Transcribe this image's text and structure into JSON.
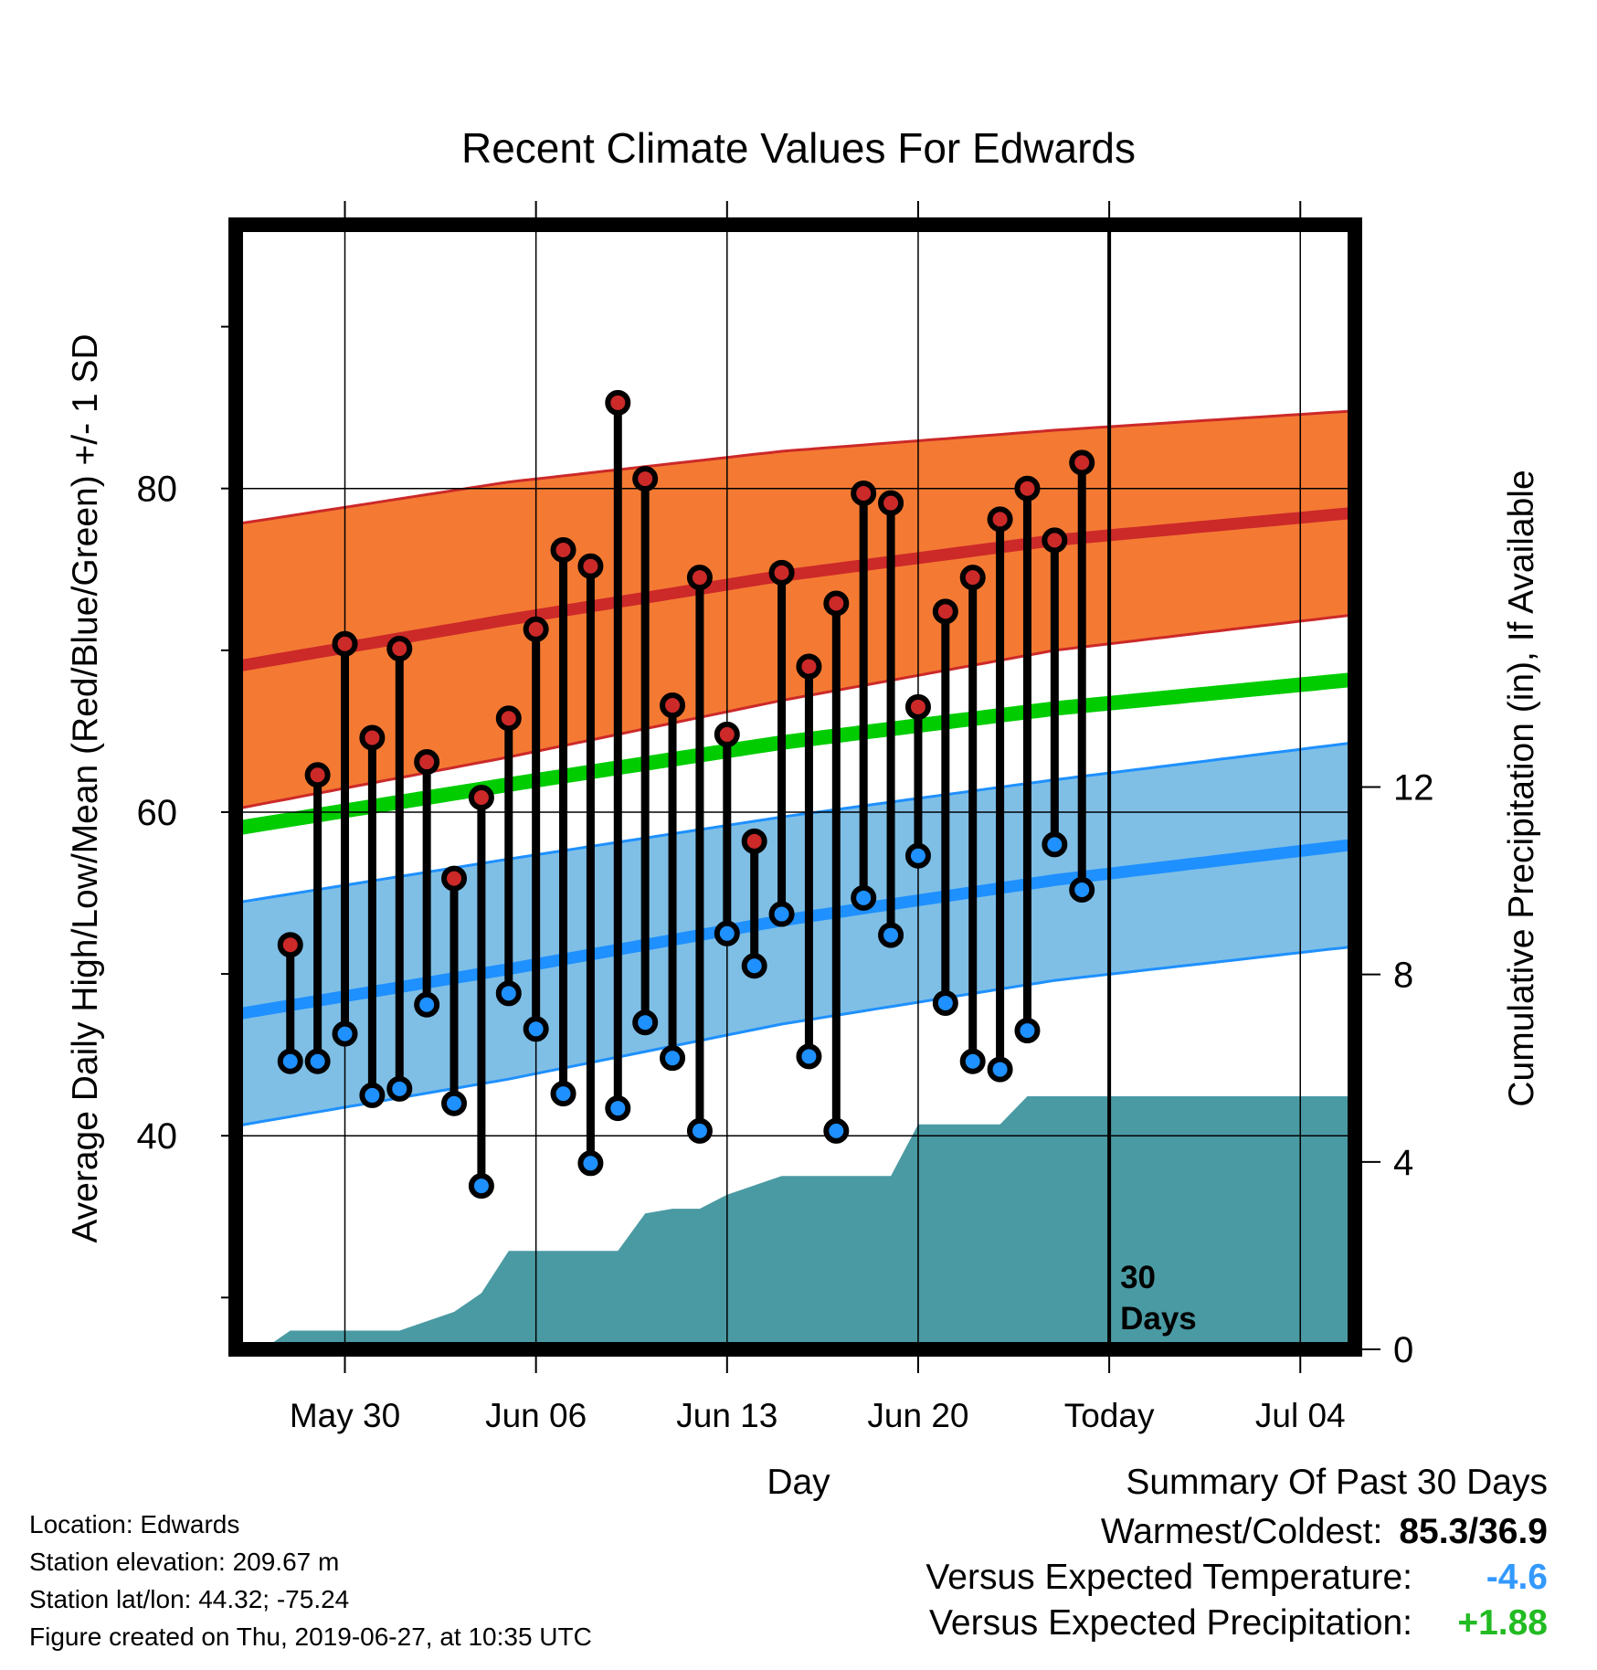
{
  "chart_data": {
    "type": "line",
    "title": "Recent Climate Values For Edwards",
    "xlabel": "Day",
    "ylabel": "Average Daily High/Low/Mean (Red/Blue/Green) +/- 1 SD",
    "ylabel_right": "Cumulative Precipitation (in), If Available",
    "x_ticks": [
      "May 30",
      "Jun 06",
      "Jun 13",
      "Jun 20",
      "Today",
      "Jul 04"
    ],
    "x_range": [
      "2019-05-26",
      "2019-07-06"
    ],
    "today": "2019-06-27",
    "today_label": [
      "30",
      "Days"
    ],
    "y_left": {
      "range": [
        26.8,
        96.3
      ],
      "ticks": [
        40,
        60,
        80
      ],
      "minor_ticks": [
        30,
        50,
        70,
        90
      ]
    },
    "y_right": {
      "range": [
        0,
        24
      ],
      "ticks": [
        0,
        4,
        8,
        12
      ]
    },
    "grid": true,
    "colors": {
      "high": "#cc2929",
      "high_band": "#f47a33",
      "low": "#1e90ff",
      "low_band": "#7fbfe6",
      "mean": "#00cc00",
      "precip": "#4a9aa3"
    },
    "normals": {
      "dates": [
        "2019-05-26",
        "2019-06-05",
        "2019-06-15",
        "2019-06-25",
        "2019-07-06"
      ],
      "high_mean": [
        69.0,
        71.9,
        74.6,
        76.8,
        78.5
      ],
      "high_sd": [
        8.8,
        8.5,
        7.7,
        6.8,
        6.3
      ],
      "low_mean": [
        47.5,
        50.3,
        53.3,
        55.8,
        58.0
      ],
      "low_sd": [
        6.9,
        6.8,
        6.4,
        6.2,
        6.3
      ],
      "avg_mean": [
        59.0,
        61.7,
        64.3,
        66.4,
        68.2
      ]
    },
    "series": [
      {
        "name": "High",
        "dates": [
          "2019-05-28",
          "2019-05-29",
          "2019-05-30",
          "2019-05-31",
          "2019-06-01",
          "2019-06-02",
          "2019-06-03",
          "2019-06-04",
          "2019-06-05",
          "2019-06-06",
          "2019-06-07",
          "2019-06-08",
          "2019-06-09",
          "2019-06-10",
          "2019-06-11",
          "2019-06-12",
          "2019-06-13",
          "2019-06-14",
          "2019-06-15",
          "2019-06-16",
          "2019-06-17",
          "2019-06-18",
          "2019-06-19",
          "2019-06-20",
          "2019-06-21",
          "2019-06-22",
          "2019-06-23",
          "2019-06-24",
          "2019-06-25",
          "2019-06-26"
        ],
        "values": [
          51.8,
          62.3,
          70.4,
          64.6,
          70.1,
          63.1,
          55.9,
          60.9,
          65.8,
          71.3,
          76.2,
          75.2,
          85.3,
          80.6,
          66.6,
          74.5,
          64.8,
          58.2,
          74.8,
          69.0,
          72.9,
          79.7,
          79.1,
          66.5,
          72.4,
          74.5,
          78.1,
          80.0,
          76.8,
          81.6
        ]
      },
      {
        "name": "Low",
        "dates": [
          "2019-05-28",
          "2019-05-29",
          "2019-05-30",
          "2019-05-31",
          "2019-06-01",
          "2019-06-02",
          "2019-06-03",
          "2019-06-04",
          "2019-06-05",
          "2019-06-06",
          "2019-06-07",
          "2019-06-08",
          "2019-06-09",
          "2019-06-10",
          "2019-06-11",
          "2019-06-12",
          "2019-06-13",
          "2019-06-14",
          "2019-06-15",
          "2019-06-16",
          "2019-06-17",
          "2019-06-18",
          "2019-06-19",
          "2019-06-20",
          "2019-06-21",
          "2019-06-22",
          "2019-06-23",
          "2019-06-24",
          "2019-06-25",
          "2019-06-26"
        ],
        "values": [
          44.6,
          44.6,
          46.3,
          42.5,
          42.9,
          48.1,
          42.0,
          36.9,
          48.8,
          46.6,
          42.6,
          38.3,
          41.7,
          47.0,
          44.8,
          40.3,
          52.5,
          50.5,
          53.7,
          44.9,
          40.3,
          54.7,
          52.4,
          57.3,
          48.2,
          44.6,
          44.1,
          46.5,
          58.0,
          55.2
        ]
      },
      {
        "name": "Cumulative Precipitation",
        "dates": [
          "2019-05-27",
          "2019-05-28",
          "2019-05-29",
          "2019-05-30",
          "2019-05-31",
          "2019-06-01",
          "2019-06-02",
          "2019-06-03",
          "2019-06-04",
          "2019-06-05",
          "2019-06-06",
          "2019-06-07",
          "2019-06-08",
          "2019-06-09",
          "2019-06-10",
          "2019-06-11",
          "2019-06-12",
          "2019-06-13",
          "2019-06-14",
          "2019-06-15",
          "2019-06-16",
          "2019-06-17",
          "2019-06-18",
          "2019-06-19",
          "2019-06-20",
          "2019-06-21",
          "2019-06-22",
          "2019-06-23",
          "2019-06-24",
          "2019-06-25",
          "2019-06-26",
          "2019-06-27",
          "2019-07-06"
        ],
        "values": [
          0.0,
          0.4,
          0.4,
          0.4,
          0.4,
          0.4,
          0.6,
          0.8,
          1.2,
          2.1,
          2.1,
          2.1,
          2.1,
          2.1,
          2.9,
          3.0,
          3.0,
          3.3,
          3.5,
          3.7,
          3.7,
          3.7,
          3.7,
          3.7,
          4.8,
          4.8,
          4.8,
          4.8,
          5.4,
          5.4,
          5.4,
          5.4,
          5.4
        ]
      }
    ]
  },
  "footer": {
    "location": "Location: Edwards",
    "elevation": "Station elevation: 209.67 m",
    "latlon": "Station lat/lon: 44.32; -75.24",
    "created": "Figure created on Thu, 2019-06-27, at 10:35 UTC"
  },
  "summary": {
    "title": "Summary Of Past 30 Days",
    "warmest_label": "Warmest/Coldest:",
    "warmest_value": "85.3/36.9",
    "temp_label": "Versus Expected Temperature:",
    "temp_value": "-4.6",
    "temp_color": "#3399ff",
    "precip_label": "Versus Expected Precipitation:",
    "precip_value": "+1.88",
    "precip_color": "#22bb22"
  }
}
